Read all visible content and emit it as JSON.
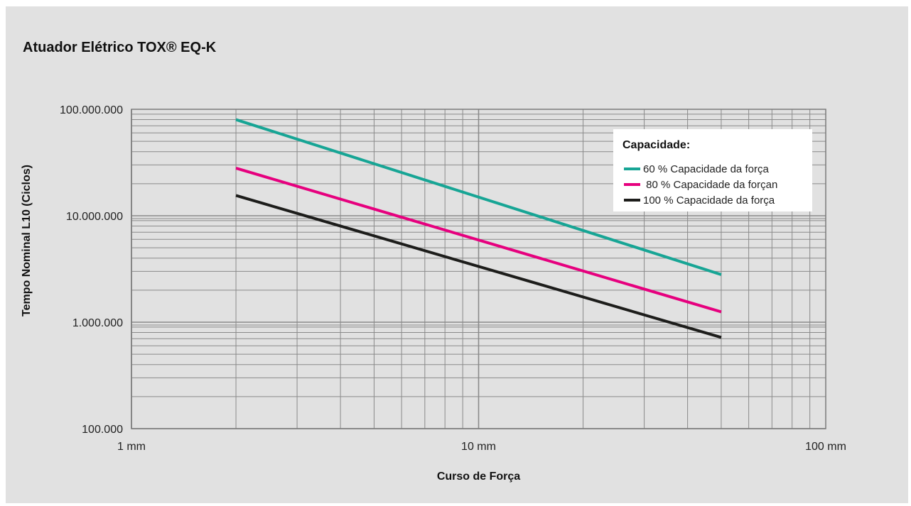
{
  "chart_data": {
    "type": "line",
    "title": "Atuador Elétrico TOX® EQ-K",
    "xlabel": "Curso de Força",
    "ylabel": "Tempo Nominal L10 (Ciclos)",
    "x_scale": "log",
    "y_scale": "log",
    "xlim": [
      1,
      100
    ],
    "ylim": [
      100000,
      100000000
    ],
    "x_ticks": [
      {
        "value": 1,
        "label": "1 mm"
      },
      {
        "value": 10,
        "label": "10 mm"
      },
      {
        "value": 100,
        "label": "100 mm"
      }
    ],
    "y_ticks": [
      {
        "value": 100000,
        "label": "100.000"
      },
      {
        "value": 1000000,
        "label": "1.000.000"
      },
      {
        "value": 10000000,
        "label": "10.000.000"
      },
      {
        "value": 100000000,
        "label": "100.000.000"
      }
    ],
    "grid": true,
    "legend": {
      "title": "Capacidade:",
      "position": "top-right"
    },
    "series": [
      {
        "name": "60 % Capacidade da força",
        "color": "#17a595",
        "points": [
          [
            2,
            80000000
          ],
          [
            50,
            2800000
          ]
        ]
      },
      {
        "name": " 80 % Capacidade da forçan",
        "color": "#e6007e",
        "points": [
          [
            2,
            28000000
          ],
          [
            50,
            1250000
          ]
        ]
      },
      {
        "name": "100 % Capacidade da força",
        "color": "#1d1d1b",
        "points": [
          [
            2,
            15500000
          ],
          [
            50,
            720000
          ]
        ]
      }
    ]
  }
}
